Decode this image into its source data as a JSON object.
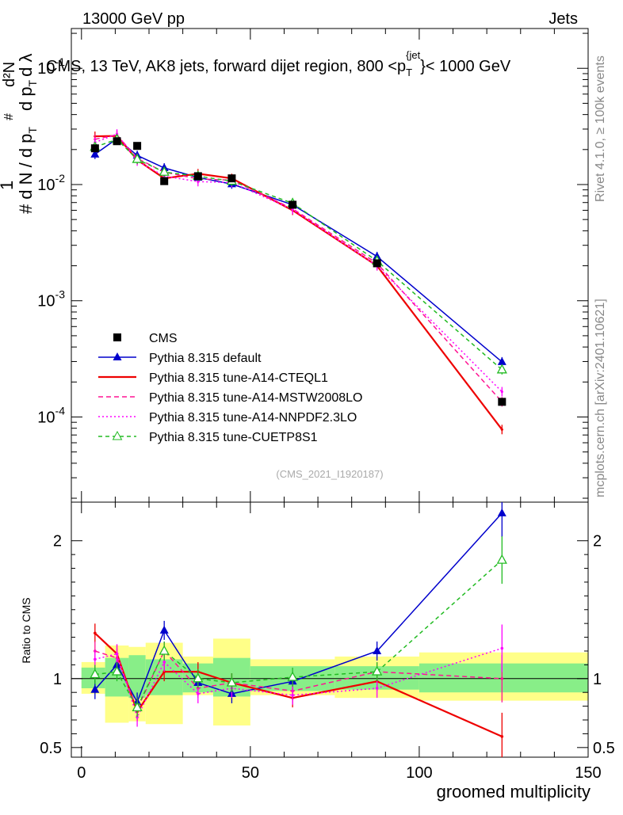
{
  "header": {
    "energy_label": "13000 GeV pp",
    "category_label": "Jets",
    "main_title": "CMS, 13 TeV, AK8 jets, forward dijet region, 800 <p",
    "title_sub_T": "T",
    "title_sup_jet": "{jet",
    "title_close": "}< 1000 GeV",
    "rivet_label": "Rivet 4.1.0, ≥ 100k events",
    "mcplots_label": "mcplots.cern.ch [arXiv:2401.10621]",
    "analysis_label": "(CMS_2021_I1920187)"
  },
  "ylabel_main": {
    "hash": "#",
    "one": "1",
    "dN": "d N / d p",
    "T": "T",
    "hash2": "#",
    "d2N": "d²N",
    "dpT": "d p",
    "T2": "T",
    "dlambda": "d λ",
    "hash3": "#"
  },
  "chart_data": [
    {
      "type": "line",
      "title": "CMS, 13 TeV, AK8 jets, forward dijet region, 800 < pT(jet) < 1000 GeV",
      "xlabel": "groomed multiplicity",
      "ylabel": "(1/dN/dpT) d²N/dpT dλ",
      "yscale": "log",
      "xlim": [
        -3,
        150
      ],
      "ylim": [
        1.85e-05,
        0.22
      ],
      "ytick_labels": [
        "10^-4",
        "10^-3",
        "10^-2",
        "10^-1"
      ],
      "x": [
        4,
        10.5,
        16.5,
        24.5,
        34.5,
        44.5,
        62.5,
        87.5,
        124.5
      ],
      "data": {
        "name": "CMS",
        "values": [
          0.0205,
          0.0236,
          0.0215,
          0.0107,
          0.0118,
          0.0113,
          0.0067,
          0.0021,
          0.000135
        ]
      },
      "series": [
        {
          "name": "Pythia 8.315 default",
          "color": "#0000cc",
          "dash": "",
          "marker": "triangle-filled",
          "values": [
            0.0182,
            0.0248,
            0.0178,
            0.0139,
            0.0115,
            0.0101,
            0.0067,
            0.0024,
            0.000298
          ]
        },
        {
          "name": "Pythia 8.315 tune-A14-CTEQL1",
          "color": "#ee0000",
          "dash": "",
          "marker": "none",
          "values": [
            0.026,
            0.0262,
            0.0163,
            0.0113,
            0.0124,
            0.0113,
            0.006,
            0.002,
            7.8e-05
          ]
        },
        {
          "name": "Pythia 8.315 tune-A14-MSTW2008LO",
          "color": "#ff1493",
          "dash": "6,4",
          "marker": "none",
          "values": [
            0.0245,
            0.0268,
            0.0168,
            0.0128,
            0.0112,
            0.0109,
            0.0062,
            0.0021,
            0.000135
          ]
        },
        {
          "name": "Pythia 8.315 tune-A14-NNPDF2.3LO",
          "color": "#ff00ff",
          "dash": "2,3",
          "marker": "none",
          "values": [
            0.023,
            0.0272,
            0.0159,
            0.0118,
            0.0106,
            0.0104,
            0.0061,
            0.002,
            0.000165
          ]
        },
        {
          "name": "Pythia 8.315 tune-CUETP8S1",
          "color": "#22bb22",
          "dash": "5,4",
          "marker": "triangle-open",
          "values": [
            0.021,
            0.0245,
            0.0165,
            0.0128,
            0.0118,
            0.0107,
            0.0069,
            0.0022,
            0.000255
          ]
        }
      ]
    },
    {
      "type": "line",
      "title": "Ratio to CMS",
      "xlabel": "groomed multiplicity",
      "ylabel": "Ratio to CMS",
      "xlim": [
        -3,
        150
      ],
      "ylim": [
        0.43,
        2.28
      ],
      "yticks": [
        0.5,
        1,
        2
      ],
      "ytick_labels": [
        "0.5",
        "1",
        "2"
      ],
      "xticks": [
        0,
        50,
        100,
        150
      ],
      "xtick_labels": [
        "0",
        "50",
        "100",
        "150"
      ],
      "x": [
        4,
        10.5,
        16.5,
        24.5,
        34.5,
        44.5,
        62.5,
        87.5,
        124.5
      ],
      "bins": [
        [
          0,
          7
        ],
        [
          7,
          14
        ],
        [
          14,
          19
        ],
        [
          19,
          30
        ],
        [
          30,
          39
        ],
        [
          39,
          50
        ],
        [
          50,
          75
        ],
        [
          75,
          100
        ],
        [
          100,
          150
        ]
      ],
      "band_green": [
        [
          0.93,
          1.08
        ],
        [
          0.87,
          1.15
        ],
        [
          0.86,
          1.17
        ],
        [
          0.88,
          1.14
        ],
        [
          0.9,
          1.11
        ],
        [
          0.87,
          1.15
        ],
        [
          0.91,
          1.09
        ],
        [
          0.92,
          1.09
        ],
        [
          0.9,
          1.11
        ]
      ],
      "band_yellow": [
        [
          0.89,
          1.12
        ],
        [
          0.68,
          1.24
        ],
        [
          0.69,
          1.23
        ],
        [
          0.67,
          1.26
        ],
        [
          0.88,
          1.16
        ],
        [
          0.66,
          1.29
        ],
        [
          0.88,
          1.14
        ],
        [
          0.86,
          1.16
        ],
        [
          0.84,
          1.19
        ]
      ],
      "series": [
        {
          "name": "Pythia 8.315 default",
          "color": "#0000cc",
          "dash": "",
          "marker": "triangle-filled",
          "values": [
            0.92,
            1.1,
            0.83,
            1.35,
            0.97,
            0.89,
            0.98,
            1.2,
            2.2
          ]
        },
        {
          "name": "Pythia 8.315 tune-A14-CTEQL1",
          "color": "#ee0000",
          "dash": "",
          "marker": "none",
          "values": [
            1.33,
            1.18,
            0.76,
            1.05,
            1.05,
            0.97,
            0.86,
            0.98,
            0.58
          ]
        },
        {
          "name": "Pythia 8.315 tune-A14-MSTW2008LO",
          "color": "#ff1493",
          "dash": "6,4",
          "marker": "none",
          "values": [
            1.2,
            1.15,
            0.78,
            1.2,
            0.93,
            0.97,
            0.91,
            1.05,
            1.0
          ]
        },
        {
          "name": "Pythia 8.315 tune-A14-NNPDF2.3LO",
          "color": "#ff00ff",
          "dash": "2,3",
          "marker": "none",
          "values": [
            1.14,
            1.18,
            0.72,
            1.12,
            0.89,
            0.93,
            0.88,
            0.93,
            1.22
          ]
        },
        {
          "name": "Pythia 8.315 tune-CUETP8S1",
          "color": "#22bb22",
          "dash": "5,4",
          "marker": "triangle-open",
          "values": [
            1.03,
            1.05,
            0.79,
            1.2,
            1.0,
            0.97,
            1.01,
            1.05,
            1.86
          ]
        }
      ]
    }
  ]
}
